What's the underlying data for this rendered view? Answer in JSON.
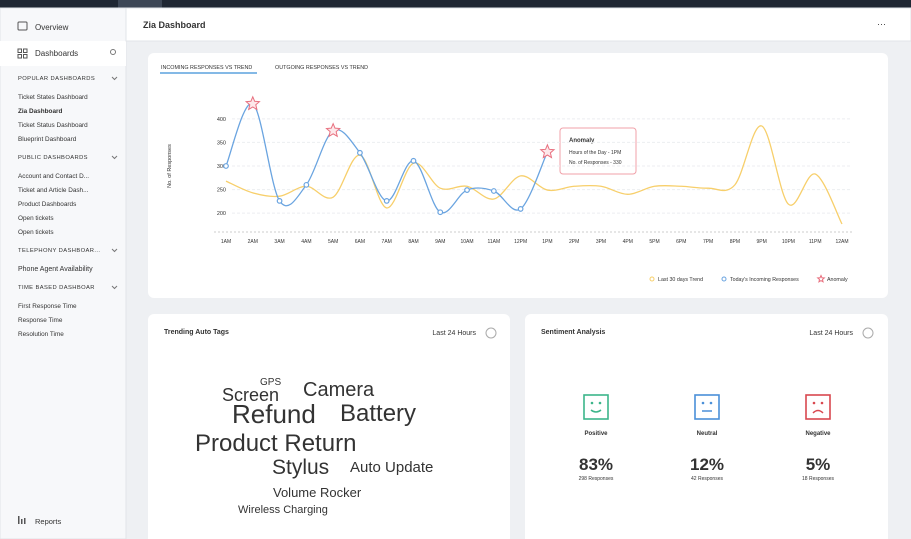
{
  "header": {
    "title": "Zia Dashboard"
  },
  "sidebar": {
    "overview": "Overview",
    "dashboards": "Dashboards",
    "groups": [
      {
        "heading": "POPULAR DASHBOARDS",
        "links": [
          "Ticket States Dashboard",
          "Zia Dashboard",
          "Ticket Status Dashboard",
          "Blueprint Dashboard"
        ]
      },
      {
        "heading": "PUBLIC DASHBOARDS",
        "links": [
          "Account and Contact D...",
          "Ticket and Article Dash...",
          "Product Dashboards",
          "Open tickets",
          "Open tickets"
        ]
      },
      {
        "heading": "TELEPHONY DASHBOAR...",
        "links": [
          "Phone Agent Availability"
        ]
      },
      {
        "heading": "TIME BASED DASHBOAR",
        "links": [
          "First Response Time",
          "Response Time",
          "Resolution Time"
        ]
      }
    ],
    "reports": "Reports"
  },
  "chart_data": {
    "type": "line",
    "tabs": [
      "INCOMING RESPONSES VS TREND",
      "OUTGOING RESPONSES VS TREND"
    ],
    "y_label": "No. of Responses",
    "categories": [
      "1AM",
      "2AM",
      "3AM",
      "4AM",
      "5AM",
      "6AM",
      "7AM",
      "8AM",
      "9AM",
      "10AM",
      "11AM",
      "12PM",
      "1PM",
      "2PM",
      "3PM",
      "4PM",
      "5PM",
      "6PM",
      "7PM",
      "8PM",
      "9PM",
      "10PM",
      "11PM",
      "12AM"
    ],
    "ylim": [
      177,
      440
    ],
    "yticks": [
      200,
      250,
      300,
      350,
      400
    ],
    "grid": true,
    "series": [
      {
        "name": "Last 30 days Trend",
        "color": "#f7cf6b",
        "values": [
          268,
          243,
          236,
          257,
          234,
          323,
          211,
          306,
          253,
          257,
          230,
          279,
          249,
          257,
          257,
          240,
          257,
          257,
          253,
          260,
          385,
          219,
          283,
          177
        ]
      },
      {
        "name": "Today's Incoming Responses",
        "color": "#6aa4e0",
        "values": [
          300,
          432,
          226,
          260,
          375,
          328,
          226,
          311,
          202,
          249,
          247,
          209,
          330,
          null,
          null,
          null,
          null,
          null,
          null,
          null,
          null,
          null,
          null,
          null
        ]
      },
      {
        "name": "Anomaly",
        "color": "#e8707f",
        "values": [
          null,
          432,
          null,
          null,
          375,
          null,
          null,
          null,
          null,
          null,
          null,
          null,
          330,
          null,
          null,
          null,
          null,
          null,
          null,
          null,
          null,
          null,
          null,
          null
        ]
      }
    ],
    "tooltip": {
      "title": "Anomaly",
      "lines": [
        "Hours of the Day - 1PM",
        "No. of Responses - 330"
      ]
    }
  },
  "tags_card": {
    "title": "Trending Auto Tags",
    "period": "Last 24 Hours",
    "tags": [
      {
        "text": "GPS",
        "color": "#5bc8ef"
      },
      {
        "text": "Screen",
        "color": "#f2914e"
      },
      {
        "text": "Camera",
        "color": "#f5c542"
      },
      {
        "text": "Refund",
        "color": "#4a90e2"
      },
      {
        "text": "Battery",
        "color": "#45c08f"
      },
      {
        "text": "Product Return",
        "color": "#b36ed6"
      },
      {
        "text": "Stylus",
        "color": "#e0566b"
      },
      {
        "text": "Auto Update",
        "color": "#a9c34c"
      },
      {
        "text": "Volume Rocker",
        "color": "#e4568a"
      },
      {
        "text": "Wireless Charging",
        "color": "#8cc44d"
      }
    ]
  },
  "sentiment_card": {
    "title": "Sentiment Analysis",
    "period": "Last 24 Hours",
    "items": [
      {
        "label": "Positive",
        "percent": "83%",
        "responses": "298 Responses",
        "color": "#3cb58a"
      },
      {
        "label": "Neutral",
        "percent": "12%",
        "responses": "42 Responses",
        "color": "#4a8fd8"
      },
      {
        "label": "Negative",
        "percent": "5%",
        "responses": "18 Responses",
        "color": "#d9484f"
      }
    ]
  }
}
